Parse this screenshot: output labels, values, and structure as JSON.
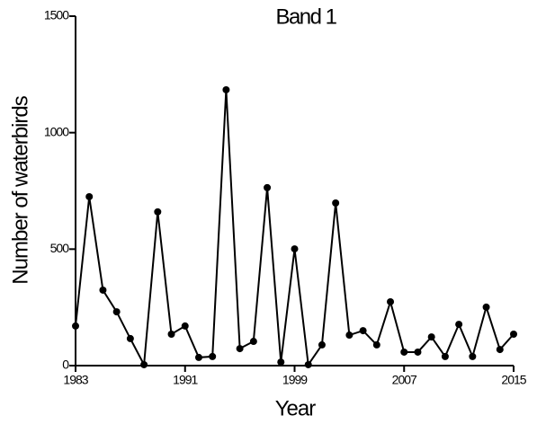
{
  "chart_data": {
    "type": "line",
    "title": "Band 1",
    "x_label": "Year",
    "y_label": "Number of waterbirds",
    "x": [
      1983,
      1984,
      1985,
      1986,
      1987,
      1988,
      1989,
      1990,
      1991,
      1992,
      1993,
      1994,
      1995,
      1996,
      1997,
      1998,
      1999,
      2000,
      2001,
      2002,
      2003,
      2004,
      2005,
      2006,
      2007,
      2008,
      2009,
      2010,
      2011,
      2012,
      2013,
      2014,
      2015
    ],
    "series": [
      {
        "name": "Band 1",
        "color": "#000000",
        "values": [
          170,
          725,
          324,
          231,
          116,
          4,
          660,
          135,
          170,
          35,
          39,
          1184,
          73,
          104,
          764,
          15,
          501,
          4,
          89,
          698,
          131,
          150,
          89,
          274,
          58,
          58,
          123,
          39,
          177,
          39,
          251,
          69,
          135
        ]
      }
    ],
    "xlim": [
      1983,
      2015
    ],
    "xticks": [
      1983,
      1991,
      1999,
      2007,
      2015
    ],
    "ylim": [
      0,
      1500
    ],
    "yticks": [
      0,
      500,
      1000,
      1500
    ]
  }
}
